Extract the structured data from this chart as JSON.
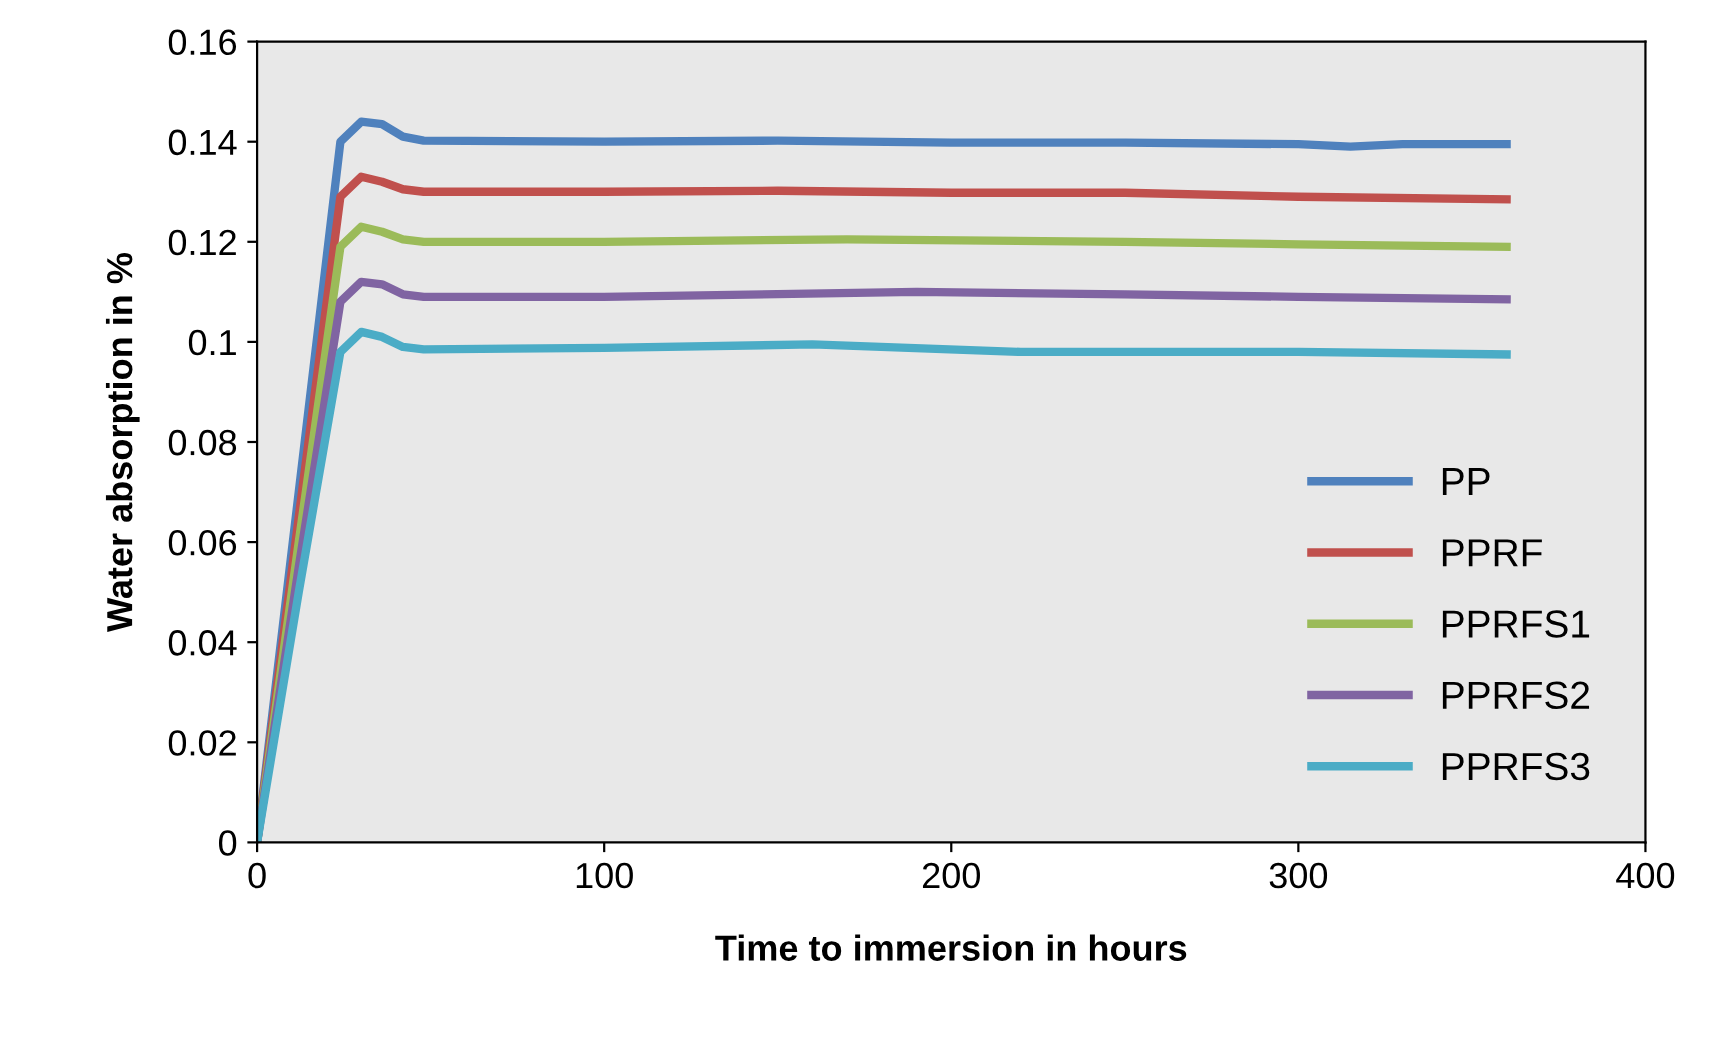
{
  "chart_data": {
    "type": "line",
    "xlabel": "Time to immersion in hours",
    "ylabel": "Water absorption in %",
    "xlim": [
      0,
      400
    ],
    "ylim": [
      0,
      0.16
    ],
    "xticks": [
      0,
      100,
      200,
      300,
      400
    ],
    "yticks": [
      0,
      0.02,
      0.04,
      0.06,
      0.08,
      0.1,
      0.12,
      0.14,
      0.16
    ],
    "grid": false,
    "legend": "lower right",
    "marker": "none",
    "line_style": "solid",
    "series": [
      {
        "name": "PP",
        "color": "#4f81bd",
        "x": [
          0,
          12,
          24,
          30,
          36,
          42,
          48,
          100,
          150,
          200,
          250,
          300,
          315,
          330,
          360
        ],
        "values": [
          0,
          0.07,
          0.14,
          0.144,
          0.1435,
          0.141,
          0.1402,
          0.14,
          0.1402,
          0.1398,
          0.1398,
          0.1395,
          0.139,
          0.1395,
          0.1395
        ]
      },
      {
        "name": "PPRF",
        "color": "#c0504d",
        "x": [
          0,
          12,
          24,
          30,
          36,
          42,
          48,
          100,
          150,
          200,
          250,
          300,
          360
        ],
        "values": [
          0,
          0.065,
          0.129,
          0.133,
          0.132,
          0.1305,
          0.13,
          0.13,
          0.1302,
          0.1298,
          0.1298,
          0.129,
          0.1285
        ]
      },
      {
        "name": "PPRFS1",
        "color": "#9bbb59",
        "x": [
          0,
          12,
          24,
          30,
          36,
          42,
          48,
          100,
          170,
          250,
          300,
          360
        ],
        "values": [
          0,
          0.06,
          0.119,
          0.123,
          0.122,
          0.1205,
          0.12,
          0.12,
          0.1205,
          0.12,
          0.1195,
          0.119
        ]
      },
      {
        "name": "PPRFS2",
        "color": "#8064a2",
        "x": [
          0,
          12,
          24,
          30,
          36,
          42,
          48,
          100,
          190,
          250,
          300,
          360
        ],
        "values": [
          0,
          0.055,
          0.108,
          0.112,
          0.1115,
          0.1095,
          0.109,
          0.109,
          0.11,
          0.1095,
          0.109,
          0.1085
        ]
      },
      {
        "name": "PPRFS3",
        "color": "#4bacc6",
        "x": [
          0,
          12,
          24,
          30,
          36,
          42,
          48,
          100,
          160,
          220,
          300,
          360
        ],
        "values": [
          0,
          0.05,
          0.098,
          0.102,
          0.101,
          0.099,
          0.0985,
          0.0988,
          0.0995,
          0.098,
          0.098,
          0.0975
        ]
      }
    ]
  }
}
